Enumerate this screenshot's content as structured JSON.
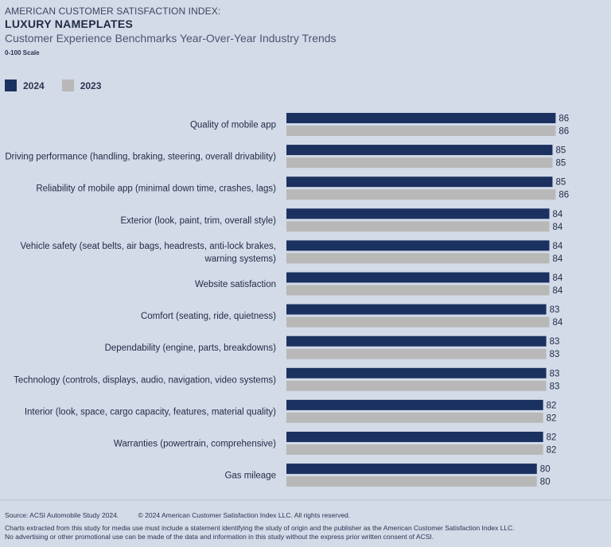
{
  "header": {
    "kicker": "AMERICAN CUSTOMER SATISFACTION INDEX:",
    "title": "LUXURY NAMEPLATES",
    "subtitle": "Customer Experience Benchmarks Year-Over-Year Industry Trends",
    "scale": "0-100 Scale"
  },
  "colors": {
    "y2024": "#1b3260",
    "y2023": "#b8b8b8"
  },
  "chart_data": {
    "type": "bar",
    "orientation": "horizontal",
    "categories": [
      "Quality of mobile app",
      "Driving performance (handling, braking, steering, overall drivability)",
      "Reliability of mobile app (minimal down time, crashes, lags)",
      "Exterior (look, paint, trim, overall style)",
      "Vehicle safety (seat belts, air bags, headrests, anti-lock brakes, warning systems)",
      "Website satisfaction",
      "Comfort (seating, ride, quietness)",
      "Dependability (engine, parts, breakdowns)",
      "Technology (controls, displays, audio, navigation, video systems)",
      "Interior (look, space, cargo capacity, features, material quality)",
      "Warranties (powertrain, comprehensive)",
      "Gas mileage"
    ],
    "category_lines": [
      [
        "Quality of mobile app"
      ],
      [
        "Driving performance (handling, braking, steering, overall drivability)"
      ],
      [
        "Reliability of mobile app (minimal down time, crashes, lags)"
      ],
      [
        "Exterior (look, paint, trim, overall style)"
      ],
      [
        "Vehicle safety (seat belts, air bags, headrests, anti-lock brakes,",
        "warning systems)"
      ],
      [
        "Website satisfaction"
      ],
      [
        "Comfort (seating, ride, quietness)"
      ],
      [
        "Dependability (engine, parts, breakdowns)"
      ],
      [
        "Technology (controls, displays, audio, navigation, video systems)"
      ],
      [
        "Interior (look, space, cargo capacity, features, material quality)"
      ],
      [
        "Warranties (powertrain, comprehensive)"
      ],
      [
        "Gas mileage"
      ]
    ],
    "series": [
      {
        "name": "2024",
        "values": [
          86,
          85,
          85,
          84,
          84,
          84,
          83,
          83,
          83,
          82,
          82,
          80
        ]
      },
      {
        "name": "2023",
        "values": [
          86,
          85,
          86,
          84,
          84,
          84,
          84,
          83,
          83,
          82,
          82,
          80
        ]
      }
    ],
    "xlim": [
      0,
      100
    ],
    "grid": false,
    "legend": "top-left"
  },
  "footer": {
    "source": "Source: ACSI Automobile Study 2024.",
    "copyright": "© 2024 American Customer Satisfaction Index LLC. All rights reserved.",
    "note1": "Charts extracted from this study for media use must include a statement identifying the study of origin and the publisher as the American Customer Satisfaction Index LLC.",
    "note2": "No advertising or other promotional use can be made of the data and information in this study without the express prior written consent of ACSI."
  }
}
